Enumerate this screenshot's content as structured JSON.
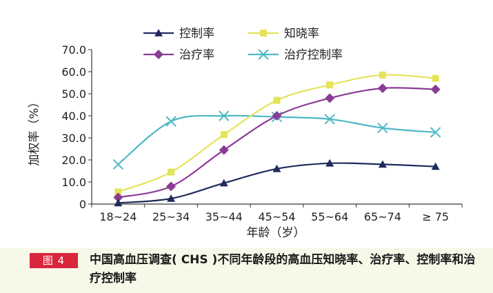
{
  "chart_data": {
    "type": "line",
    "categories": [
      "18~24",
      "25~34",
      "35~44",
      "45~54",
      "55~64",
      "65~74",
      "≥ 75"
    ],
    "series": [
      {
        "name": "控制率",
        "color": "#1e2a5c",
        "marker": "triangle",
        "values": [
          0.5,
          2.5,
          9.5,
          16.0,
          18.5,
          18.0,
          17.0
        ]
      },
      {
        "name": "知晓率",
        "color": "#e4e45a",
        "marker": "square",
        "values": [
          5.5,
          14.5,
          31.5,
          47.0,
          54.0,
          58.5,
          57.0
        ]
      },
      {
        "name": "治疗率",
        "color": "#8a3c95",
        "marker": "diamond",
        "values": [
          3.0,
          8.0,
          24.5,
          40.0,
          48.0,
          52.5,
          52.0
        ]
      },
      {
        "name": "治疗控制率",
        "color": "#4db8c4",
        "marker": "x",
        "values": [
          18.0,
          37.5,
          40.0,
          39.5,
          38.5,
          34.5,
          32.5
        ]
      }
    ],
    "ylabel": "加权率（%）",
    "xlabel": "年龄（岁）",
    "ylim": [
      0,
      70
    ],
    "yticks": [
      "0",
      "10.0",
      "20.0",
      "30.0",
      "40.0",
      "50.0",
      "60.0",
      "70.0"
    ],
    "grid": false,
    "legend_position": "top"
  },
  "caption": {
    "badge": "图 4",
    "text": "中国高血压调查( CHS )不同年龄段的高血压知晓率、治疗率、控制率和治疗控制率"
  }
}
